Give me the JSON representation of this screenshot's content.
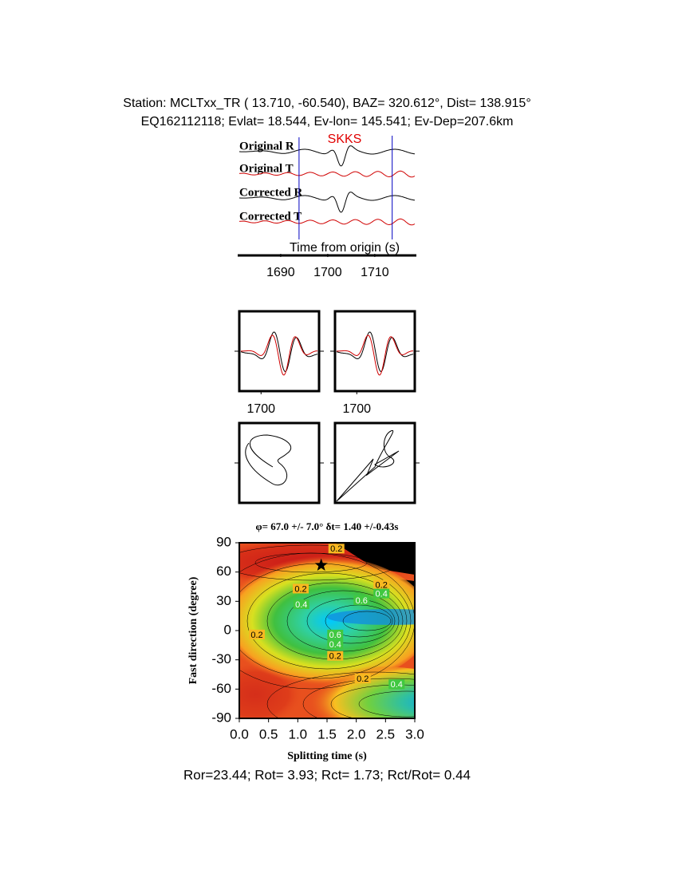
{
  "header": {
    "station_line": "Station: MCLTxx_TR (  13.710,  -60.540), BAZ=  320.612°, Dist=  138.915°",
    "event_line": "EQ162112118; Evlat=  18.544, Ev-lon= 145.541; Ev-Dep=207.6km"
  },
  "traces": {
    "phase": "SKKS",
    "labels": [
      "Original R",
      "Original T",
      "Corrected R",
      "Corrected T"
    ],
    "xlabel": "Time from origin (s)",
    "xlim": [
      1681.2,
      1718.5
    ],
    "xticks": [
      1690,
      1700,
      1710
    ],
    "window": [
      1693.9,
      1713.7
    ]
  },
  "waveform_panels": {
    "xlim": [
      1694,
      1716
    ],
    "xticks": [
      1700
    ]
  },
  "grid_search": {
    "title": "φ= 67.0 +/- 7.0° δt= 1.40 +/-0.43s",
    "xlabel": "Splitting time (s)",
    "ylabel": "Fast direction (degree)",
    "xlim": [
      0,
      3
    ],
    "xticks": [
      {
        "value": 0,
        "label": "0.0"
      },
      0.5,
      {
        "value": 1,
        "label": "1.0"
      },
      1.5,
      {
        "value": 2,
        "label": "2.0"
      },
      2.5,
      {
        "value": 3,
        "label": "3.0"
      }
    ],
    "ylim": [
      -90,
      90
    ],
    "yticks": [
      90,
      60,
      30,
      0,
      -30,
      -60,
      -90
    ],
    "best": {
      "x": 1.4,
      "y": 67
    },
    "contour_labels": [
      {
        "value": 0.2,
        "label": "0.2",
        "x": 1.66,
        "y": 84
      },
      {
        "value": 0.2,
        "label": "0.2",
        "x": 1.05,
        "y": 43
      },
      {
        "value": 0.4,
        "label": "0.4",
        "x": 1.06,
        "y": 27
      },
      {
        "value": 0.6,
        "label": "0.6",
        "x": 2.09,
        "y": 31
      },
      {
        "value": 0.2,
        "label": "0.2",
        "x": 2.43,
        "y": 47
      },
      {
        "value": 0.4,
        "label": "0.4",
        "x": 2.43,
        "y": 38
      },
      {
        "value": 0.2,
        "label": "0.2",
        "x": 0.3,
        "y": -4
      },
      {
        "value": 0.6,
        "label": "0.6",
        "x": 1.64,
        "y": -4
      },
      {
        "value": 0.4,
        "label": "0.4",
        "x": 1.64,
        "y": -14
      },
      {
        "value": 0.2,
        "label": "0.2",
        "x": 1.64,
        "y": -26
      },
      {
        "value": 0.2,
        "label": "0.2",
        "x": 2.11,
        "y": -49
      },
      {
        "value": 0.4,
        "label": "0.4",
        "x": 2.69,
        "y": -55
      }
    ]
  },
  "footer": "Ror=23.44; Rot= 3.93; Rct= 1.73; Rct/Rot= 0.44"
}
